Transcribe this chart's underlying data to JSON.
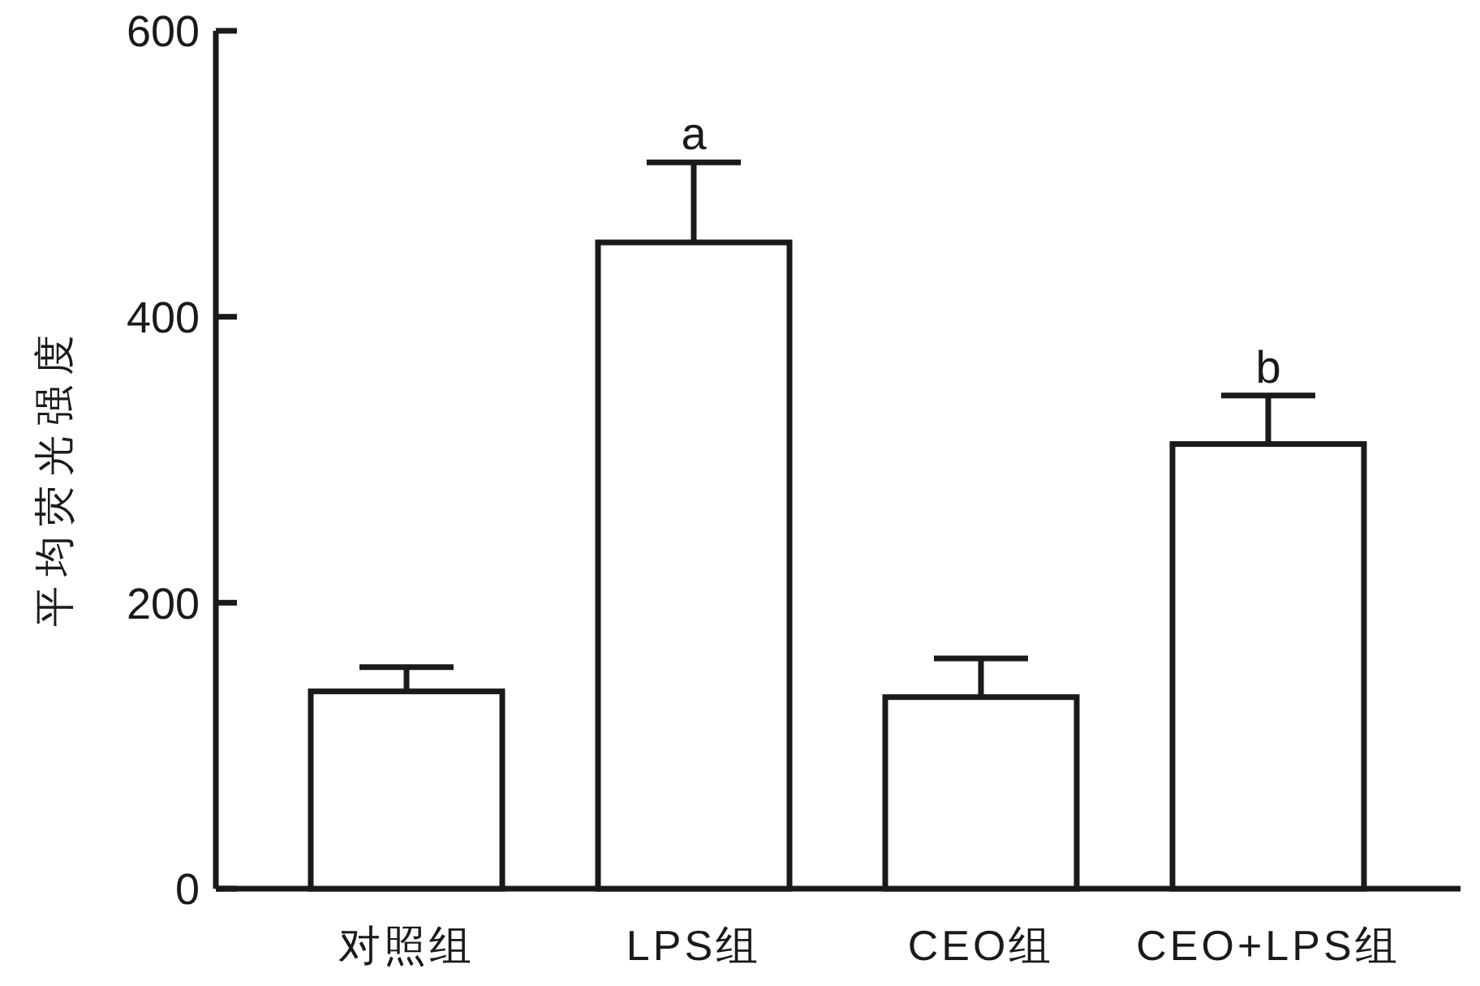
{
  "chart_data": {
    "type": "bar",
    "ylabel": "平均荧光强度",
    "categories": [
      "对照组",
      "LPS组",
      "CEO组",
      "CEO+LPS组"
    ],
    "values": [
      138,
      452,
      134,
      311
    ],
    "errors": [
      17,
      56,
      27,
      34
    ],
    "color": "#ffffff",
    "ylim": [
      0,
      600
    ],
    "yticks": [
      0,
      200,
      400,
      600
    ],
    "annotations": [
      {
        "text": "a",
        "x": "LPS组",
        "y": 508
      },
      {
        "text": "b",
        "x": "CEO+LPS组",
        "y": 345
      }
    ]
  }
}
